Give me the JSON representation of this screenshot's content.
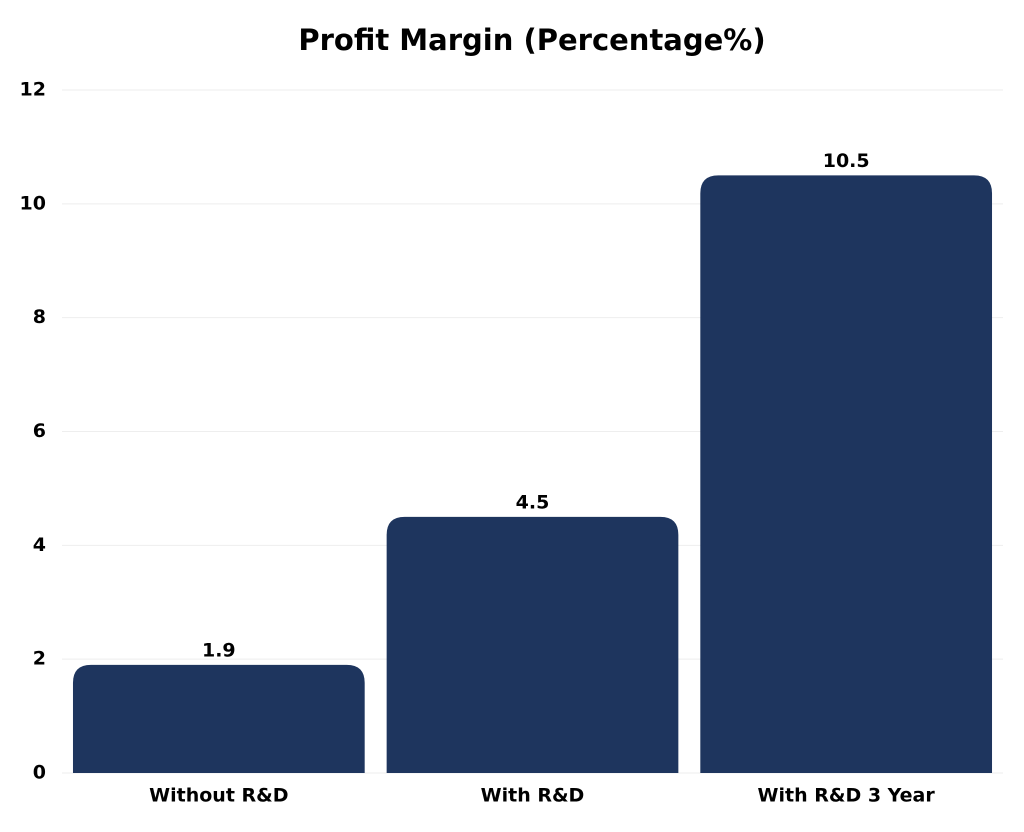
{
  "chart_data": {
    "type": "bar",
    "title": "Profit Margin (Percentage%)",
    "categories": [
      "Without R&D",
      "With R&D",
      "With R&D 3 Year"
    ],
    "values": [
      1.9,
      4.5,
      10.5
    ],
    "color": "#1e355e",
    "ylim": [
      0,
      12
    ],
    "yticks": [
      0,
      2,
      4,
      6,
      8,
      10,
      12
    ],
    "grid": true
  }
}
